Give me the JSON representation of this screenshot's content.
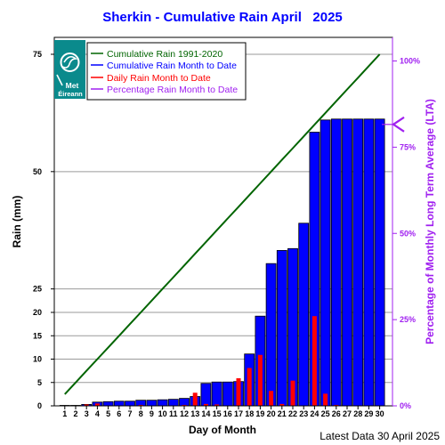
{
  "chart_data": {
    "type": "bar",
    "title": "Sherkin - Cumulative Rain April   2025",
    "xlabel": "Day of Month",
    "ylabel": "Rain (mm)",
    "y2label": "Percentage of Monthly Long Term Average (LTA)",
    "x": [
      "1",
      "2",
      "3",
      "4",
      "5",
      "6",
      "7",
      "8",
      "9",
      "10",
      "11",
      "12",
      "13",
      "14",
      "15",
      "16",
      "17",
      "18",
      "19",
      "20",
      "21",
      "22",
      "23",
      "24",
      "25",
      "26",
      "27",
      "28",
      "29",
      "30"
    ],
    "y_ticks": [
      "0",
      "5",
      "10",
      "15",
      "20",
      "25",
      "50",
      "75"
    ],
    "y2_ticks": [
      "0%",
      "25%",
      "50%",
      "75%",
      "100%"
    ],
    "ylim": [
      0,
      75
    ],
    "y2lim": [
      "0%",
      "100%"
    ],
    "legend_position": "top-left",
    "series": [
      {
        "name": "Cumulative Rain 1991-2020",
        "kind": "line",
        "color": "#006400",
        "values": [
          2.5,
          5.0,
          7.5,
          10.0,
          12.5,
          15.0,
          17.5,
          20.0,
          22.5,
          25.0,
          27.5,
          30.0,
          32.5,
          35.0,
          37.5,
          40.0,
          42.5,
          45.0,
          47.5,
          50.0,
          52.5,
          55.0,
          57.5,
          60.0,
          62.5,
          65.0,
          67.5,
          70.0,
          72.5,
          75.0
        ]
      },
      {
        "name": "Cumulative Rain Month to Date",
        "kind": "bar",
        "color": "#0000ff",
        "values": [
          0.1,
          0.1,
          0.3,
          0.8,
          0.9,
          1.0,
          1.0,
          1.2,
          1.2,
          1.3,
          1.4,
          1.6,
          2.0,
          4.8,
          5.1,
          5.1,
          5.2,
          11.1,
          19.2,
          30.4,
          33.2,
          33.6,
          39.0,
          58.4,
          61.0,
          61.2,
          61.2,
          61.2,
          61.2,
          61.2
        ]
      },
      {
        "name": "Daily Rain Month to Date",
        "kind": "bar",
        "color": "#ff0000",
        "values": [
          0,
          0,
          0.3,
          0.5,
          0.1,
          0.1,
          0,
          0.2,
          0,
          0.1,
          0.1,
          0.2,
          2.8,
          0.4,
          0.3,
          0,
          5.9,
          8.1,
          10.9,
          3.2,
          0.4,
          5.4,
          0,
          19.2,
          2.6,
          0.2,
          0,
          0,
          0,
          0
        ]
      },
      {
        "name": "Percentage Rain Month to Date",
        "kind": "marker",
        "color": "#a020f0",
        "value_percent": 81.6
      }
    ]
  },
  "logo": {
    "line1": "Met",
    "line2": "Éireann"
  },
  "footer": {
    "latest": "Latest Data 30 April 2025"
  }
}
